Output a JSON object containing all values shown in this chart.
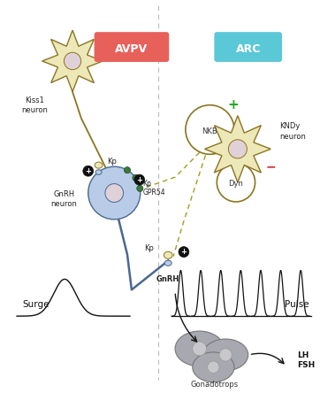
{
  "bg_color": "#ffffff",
  "avpv_label": "AVPV",
  "avpv_color": "#e8605a",
  "arc_label": "ARC",
  "arc_color": "#5bc8d8",
  "kiss1_label": "Kiss1\nneuron",
  "kndy_label": "KNDy\nneuron",
  "gnrh_neuron_label": "GnRH\nneuron",
  "nkb_label": "NKB",
  "dyn_label": "Dyn",
  "kp_label": "Kp",
  "gpr54_label": "GPR54",
  "surge_label": "Surge",
  "pulse_label": "Pulse",
  "gnrh_terminal_label": "GnRH",
  "gonadotrops_label": "Gonadotrops",
  "lh_fsh_label": "LH\nFSH",
  "neuron_body_color": "#ede8b8",
  "neuron_outline_color": "#8b7520",
  "gnrh_body_color": "#b8cce8",
  "gnrh_outline_color": "#4a6890",
  "nucleus_color": "#e0d0d8",
  "green_plus_color": "#22aa22",
  "red_minus_color": "#cc2222",
  "dashed_line_color": "#a0a020",
  "axon_color": "#4a6890",
  "gonadotrops_color": "#a8a8b0",
  "divider_color": "#bbbbbb"
}
